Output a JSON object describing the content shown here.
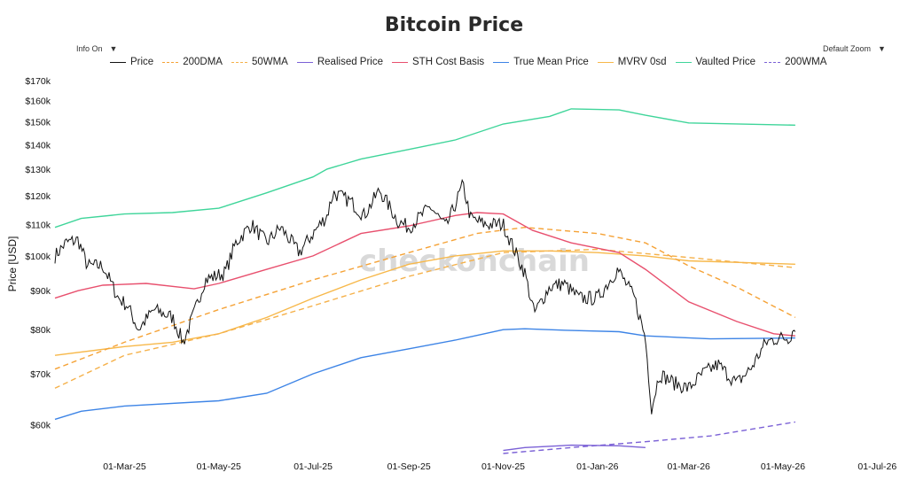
{
  "header": {
    "title": "Bitcoin Price",
    "info_menu_label": "Info On",
    "zoom_menu_label": "Default Zoom",
    "caret": "▼"
  },
  "watermark": "checkonchain",
  "chart_data": {
    "type": "line",
    "title": "Bitcoin Price",
    "ylabel": "Price [USD]",
    "xlabel": "",
    "yscale": "log",
    "ylim": [
      55000,
      175000
    ],
    "xlim": [
      "2025-01-15",
      "2026-07-10"
    ],
    "x_ticks": [
      "01-Mar-25",
      "01-May-25",
      "01-Jul-25",
      "01-Sep-25",
      "01-Nov-25",
      "01-Jan-26",
      "01-Mar-26",
      "01-May-26",
      "01-Jul-26"
    ],
    "x_tick_dates": [
      "2025-03-01",
      "2025-05-01",
      "2025-07-01",
      "2025-09-01",
      "2025-11-01",
      "2026-01-01",
      "2026-03-01",
      "2026-05-01",
      "2026-07-01"
    ],
    "y_ticks": [
      "$60k",
      "$70k",
      "$80k",
      "$90k",
      "$100k",
      "$110k",
      "$120k",
      "$130k",
      "$140k",
      "$150k",
      "$160k",
      "$170k"
    ],
    "y_tick_values": [
      60000,
      70000,
      80000,
      90000,
      100000,
      110000,
      120000,
      130000,
      140000,
      150000,
      160000,
      170000
    ],
    "legend_position": "top",
    "grid": false,
    "series": [
      {
        "name": "Price",
        "color": "#111111",
        "dash": "solid",
        "noisy": true,
        "points": [
          [
            "2025-01-15",
            100000
          ],
          [
            "2025-01-22",
            104000
          ],
          [
            "2025-01-30",
            105000
          ],
          [
            "2025-02-05",
            97000
          ],
          [
            "2025-02-15",
            97000
          ],
          [
            "2025-02-25",
            88000
          ],
          [
            "2025-03-03",
            86000
          ],
          [
            "2025-03-10",
            80000
          ],
          [
            "2025-03-20",
            85000
          ],
          [
            "2025-04-01",
            83000
          ],
          [
            "2025-04-08",
            77000
          ],
          [
            "2025-04-15",
            84000
          ],
          [
            "2025-04-22",
            93000
          ],
          [
            "2025-05-05",
            95000
          ],
          [
            "2025-05-12",
            104000
          ],
          [
            "2025-05-22",
            110000
          ],
          [
            "2025-06-01",
            104000
          ],
          [
            "2025-06-10",
            109000
          ],
          [
            "2025-06-22",
            101000
          ],
          [
            "2025-07-01",
            107000
          ],
          [
            "2025-07-10",
            113000
          ],
          [
            "2025-07-14",
            121000
          ],
          [
            "2025-07-25",
            118000
          ],
          [
            "2025-08-03",
            113000
          ],
          [
            "2025-08-13",
            122000
          ],
          [
            "2025-08-25",
            111000
          ],
          [
            "2025-09-01",
            109000
          ],
          [
            "2025-09-15",
            116000
          ],
          [
            "2025-09-25",
            109000
          ],
          [
            "2025-10-06",
            124000
          ],
          [
            "2025-10-11",
            112000
          ],
          [
            "2025-10-20",
            110000
          ],
          [
            "2025-11-01",
            110000
          ],
          [
            "2025-11-08",
            102000
          ],
          [
            "2025-11-15",
            95000
          ],
          [
            "2025-11-21",
            84000
          ],
          [
            "2025-12-01",
            91000
          ],
          [
            "2025-12-10",
            92000
          ],
          [
            "2025-12-20",
            88000
          ],
          [
            "2026-01-01",
            88000
          ],
          [
            "2026-01-14",
            96000
          ],
          [
            "2026-01-25",
            88000
          ],
          [
            "2026-02-01",
            78000
          ],
          [
            "2026-02-05",
            63000
          ],
          [
            "2026-02-10",
            70000
          ],
          [
            "2026-02-20",
            68000
          ],
          [
            "2026-03-01",
            67000
          ],
          [
            "2026-03-10",
            70000
          ],
          [
            "2026-03-20",
            72000
          ],
          [
            "2026-04-01",
            68000
          ],
          [
            "2026-04-10",
            71000
          ],
          [
            "2026-04-20",
            77000
          ],
          [
            "2026-04-28",
            78000
          ],
          [
            "2026-05-05",
            78000
          ],
          [
            "2026-05-09",
            81000
          ]
        ]
      },
      {
        "name": "200DMA",
        "color": "#f5a236",
        "dash": "dashed",
        "points": [
          [
            "2025-01-15",
            71000
          ],
          [
            "2025-03-01",
            77000
          ],
          [
            "2025-05-01",
            85000
          ],
          [
            "2025-07-01",
            93000
          ],
          [
            "2025-09-01",
            101000
          ],
          [
            "2025-10-15",
            107000
          ],
          [
            "2025-11-15",
            109000
          ],
          [
            "2026-01-01",
            107000
          ],
          [
            "2026-02-01",
            104000
          ],
          [
            "2026-03-01",
            97000
          ],
          [
            "2026-04-01",
            91000
          ],
          [
            "2026-05-09",
            83000
          ]
        ]
      },
      {
        "name": "50WMA",
        "color": "#f5b14a",
        "dash": "dashed",
        "points": [
          [
            "2025-01-15",
            67000
          ],
          [
            "2025-03-01",
            74000
          ],
          [
            "2025-04-01",
            76500
          ],
          [
            "2025-05-01",
            79000
          ],
          [
            "2025-07-01",
            86000
          ],
          [
            "2025-09-01",
            94000
          ],
          [
            "2025-11-01",
            101000
          ],
          [
            "2026-01-01",
            102000
          ],
          [
            "2026-03-01",
            99500
          ],
          [
            "2026-05-09",
            96500
          ]
        ]
      },
      {
        "name": "Realised Price",
        "color": "#7b61d6",
        "dash": "solid",
        "points": [
          [
            "2025-11-01",
            55500
          ],
          [
            "2025-11-15",
            56000
          ],
          [
            "2025-12-15",
            56400
          ],
          [
            "2026-01-15",
            56300
          ],
          [
            "2026-02-01",
            56000
          ]
        ]
      },
      {
        "name": "STH Cost Basis",
        "color": "#e8506e",
        "dash": "solid",
        "points": [
          [
            "2025-01-15",
            88000
          ],
          [
            "2025-01-30",
            90000
          ],
          [
            "2025-02-15",
            91500
          ],
          [
            "2025-03-15",
            92000
          ],
          [
            "2025-04-15",
            90500
          ],
          [
            "2025-05-01",
            92000
          ],
          [
            "2025-06-01",
            96000
          ],
          [
            "2025-07-01",
            100000
          ],
          [
            "2025-08-01",
            107000
          ],
          [
            "2025-09-01",
            109500
          ],
          [
            "2025-10-01",
            113000
          ],
          [
            "2025-10-15",
            114000
          ],
          [
            "2025-11-01",
            113500
          ],
          [
            "2025-11-20",
            108000
          ],
          [
            "2025-12-15",
            104000
          ],
          [
            "2026-01-15",
            101000
          ],
          [
            "2026-02-01",
            96000
          ],
          [
            "2026-03-01",
            87000
          ],
          [
            "2026-04-01",
            82000
          ],
          [
            "2026-04-25",
            79000
          ],
          [
            "2026-05-09",
            78500
          ]
        ]
      },
      {
        "name": "True Mean Price",
        "color": "#3d84e6",
        "dash": "solid",
        "points": [
          [
            "2025-01-15",
            61000
          ],
          [
            "2025-02-01",
            62500
          ],
          [
            "2025-03-01",
            63500
          ],
          [
            "2025-05-01",
            64500
          ],
          [
            "2025-06-01",
            66000
          ],
          [
            "2025-07-01",
            70000
          ],
          [
            "2025-08-01",
            73500
          ],
          [
            "2025-09-01",
            75500
          ],
          [
            "2025-10-01",
            77500
          ],
          [
            "2025-11-01",
            80000
          ],
          [
            "2025-11-15",
            80200
          ],
          [
            "2025-12-15",
            79800
          ],
          [
            "2026-01-15",
            79500
          ],
          [
            "2026-02-01",
            78500
          ],
          [
            "2026-03-15",
            77800
          ],
          [
            "2026-05-09",
            78000
          ]
        ]
      },
      {
        "name": "MVRV 0sd",
        "color": "#f7b84a",
        "dash": "solid",
        "points": [
          [
            "2025-01-15",
            74000
          ],
          [
            "2025-03-01",
            76000
          ],
          [
            "2025-04-01",
            77000
          ],
          [
            "2025-05-01",
            79000
          ],
          [
            "2025-06-01",
            83000
          ],
          [
            "2025-07-01",
            88000
          ],
          [
            "2025-08-01",
            93000
          ],
          [
            "2025-09-01",
            97500
          ],
          [
            "2025-10-01",
            100000
          ],
          [
            "2025-11-01",
            101500
          ],
          [
            "2025-12-01",
            101500
          ],
          [
            "2026-01-01",
            101000
          ],
          [
            "2026-02-01",
            100000
          ],
          [
            "2026-03-01",
            98500
          ],
          [
            "2026-05-09",
            97500
          ]
        ]
      },
      {
        "name": "Vaulted Price",
        "color": "#3fd59a",
        "dash": "solid",
        "points": [
          [
            "2025-01-15",
            109000
          ],
          [
            "2025-02-01",
            112000
          ],
          [
            "2025-03-01",
            113500
          ],
          [
            "2025-04-01",
            114000
          ],
          [
            "2025-05-01",
            115500
          ],
          [
            "2025-06-01",
            121000
          ],
          [
            "2025-07-01",
            127000
          ],
          [
            "2025-07-10",
            130000
          ],
          [
            "2025-08-01",
            134000
          ],
          [
            "2025-09-01",
            138000
          ],
          [
            "2025-10-01",
            142000
          ],
          [
            "2025-11-01",
            149000
          ],
          [
            "2025-12-01",
            152500
          ],
          [
            "2025-12-15",
            156000
          ],
          [
            "2026-01-15",
            155500
          ],
          [
            "2026-02-01",
            153000
          ],
          [
            "2026-03-01",
            149500
          ],
          [
            "2026-05-09",
            148500
          ]
        ]
      },
      {
        "name": "200WMA",
        "color": "#7b61d6",
        "dash": "dashed",
        "points": [
          [
            "2025-11-01",
            55000
          ],
          [
            "2025-12-15",
            56000
          ],
          [
            "2026-02-01",
            57000
          ],
          [
            "2026-03-15",
            58000
          ],
          [
            "2026-05-09",
            60500
          ]
        ]
      }
    ]
  }
}
